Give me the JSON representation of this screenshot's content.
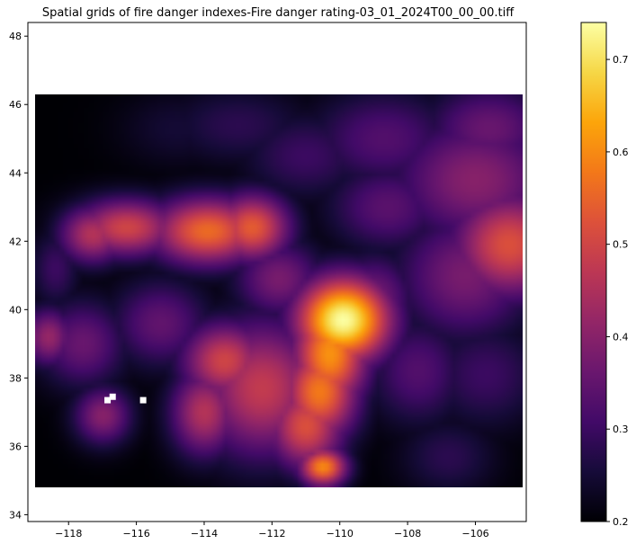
{
  "chart_data": {
    "type": "heatmap",
    "title": "Spatial grids of fire danger indexes-Fire danger rating-03_01_2024T00_00_00.tiff",
    "xlabel": "",
    "ylabel": "",
    "xlim": [
      -119.2,
      -104.5
    ],
    "ylim": [
      33.8,
      48.4
    ],
    "data_extent": {
      "lon": [
        -119.0,
        -104.6
      ],
      "lat": [
        34.8,
        46.3
      ]
    },
    "x_ticks": [
      -118,
      -116,
      -114,
      -112,
      -110,
      -108,
      -106
    ],
    "x_tick_labels": [
      "−118",
      "−116",
      "−114",
      "−112",
      "−110",
      "−108",
      "−106"
    ],
    "y_ticks": [
      34,
      36,
      38,
      40,
      42,
      44,
      46,
      48
    ],
    "y_tick_labels": [
      "34",
      "36",
      "38",
      "40",
      "42",
      "44",
      "46",
      "48"
    ],
    "colormap": "inferno",
    "vmin": 0.2,
    "vmax": 0.74,
    "colorbar_ticks": [
      0.2,
      0.3,
      0.4,
      0.5,
      0.6,
      0.7
    ],
    "colorbar_tick_labels": [
      "0.2",
      "0.3",
      "0.4",
      "0.5",
      "0.6",
      "0.7"
    ],
    "background_value": 0.2,
    "hotspots": [
      {
        "lon": -109.9,
        "lat": 39.7,
        "value": 0.74,
        "rx": 1.0,
        "ry": 0.9
      },
      {
        "lon": -110.3,
        "lat": 38.7,
        "value": 0.61,
        "rx": 0.8,
        "ry": 1.1
      },
      {
        "lon": -110.6,
        "lat": 37.6,
        "value": 0.58,
        "rx": 0.8,
        "ry": 1.0
      },
      {
        "lon": -111.0,
        "lat": 36.6,
        "value": 0.52,
        "rx": 0.8,
        "ry": 0.9
      },
      {
        "lon": -110.5,
        "lat": 35.4,
        "value": 0.6,
        "rx": 0.5,
        "ry": 0.4
      },
      {
        "lon": -112.3,
        "lat": 37.7,
        "value": 0.48,
        "rx": 1.3,
        "ry": 1.4
      },
      {
        "lon": -113.4,
        "lat": 38.5,
        "value": 0.5,
        "rx": 0.9,
        "ry": 0.8
      },
      {
        "lon": -114.0,
        "lat": 37.0,
        "value": 0.46,
        "rx": 0.7,
        "ry": 0.9
      },
      {
        "lon": -113.9,
        "lat": 42.3,
        "value": 0.56,
        "rx": 1.2,
        "ry": 0.7
      },
      {
        "lon": -112.6,
        "lat": 42.4,
        "value": 0.54,
        "rx": 0.8,
        "ry": 0.7
      },
      {
        "lon": -116.3,
        "lat": 42.4,
        "value": 0.5,
        "rx": 1.1,
        "ry": 0.6
      },
      {
        "lon": -117.3,
        "lat": 42.2,
        "value": 0.46,
        "rx": 0.7,
        "ry": 0.6
      },
      {
        "lon": -105.0,
        "lat": 41.9,
        "value": 0.52,
        "rx": 1.2,
        "ry": 1.1
      },
      {
        "lon": -106.0,
        "lat": 43.8,
        "value": 0.4,
        "rx": 1.7,
        "ry": 1.3
      },
      {
        "lon": -106.3,
        "lat": 41.0,
        "value": 0.38,
        "rx": 1.4,
        "ry": 1.3
      },
      {
        "lon": -105.6,
        "lat": 45.3,
        "value": 0.36,
        "rx": 1.3,
        "ry": 0.9
      },
      {
        "lon": -108.7,
        "lat": 45.0,
        "value": 0.33,
        "rx": 1.5,
        "ry": 1.0
      },
      {
        "lon": -108.6,
        "lat": 43.0,
        "value": 0.34,
        "rx": 1.2,
        "ry": 0.9
      },
      {
        "lon": -111.0,
        "lat": 44.5,
        "value": 0.3,
        "rx": 1.3,
        "ry": 0.9
      },
      {
        "lon": -113.0,
        "lat": 45.4,
        "value": 0.28,
        "rx": 1.5,
        "ry": 0.8
      },
      {
        "lon": -118.6,
        "lat": 39.2,
        "value": 0.42,
        "rx": 0.5,
        "ry": 0.6
      },
      {
        "lon": -117.6,
        "lat": 39.0,
        "value": 0.36,
        "rx": 0.9,
        "ry": 0.9
      },
      {
        "lon": -117.0,
        "lat": 36.9,
        "value": 0.4,
        "rx": 0.6,
        "ry": 0.6
      },
      {
        "lon": -115.3,
        "lat": 39.6,
        "value": 0.35,
        "rx": 1.0,
        "ry": 0.9
      },
      {
        "lon": -107.7,
        "lat": 38.2,
        "value": 0.33,
        "rx": 1.0,
        "ry": 1.1
      },
      {
        "lon": -109.0,
        "lat": 40.3,
        "value": 0.38,
        "rx": 0.8,
        "ry": 0.9
      },
      {
        "lon": -105.7,
        "lat": 38.1,
        "value": 0.3,
        "rx": 1.2,
        "ry": 1.1
      },
      {
        "lon": -106.8,
        "lat": 35.7,
        "value": 0.28,
        "rx": 1.0,
        "ry": 0.8
      },
      {
        "lon": -111.8,
        "lat": 40.9,
        "value": 0.38,
        "rx": 0.9,
        "ry": 0.8
      },
      {
        "lon": -118.4,
        "lat": 41.2,
        "value": 0.3,
        "rx": 0.5,
        "ry": 0.8
      },
      {
        "lon": -114.8,
        "lat": 45.3,
        "value": 0.25,
        "rx": 1.2,
        "ry": 0.8
      }
    ],
    "missing_cells": [
      {
        "lon": -116.85,
        "lat": 37.35
      },
      {
        "lon": -116.7,
        "lat": 37.45
      },
      {
        "lon": -115.8,
        "lat": 37.35
      }
    ]
  }
}
